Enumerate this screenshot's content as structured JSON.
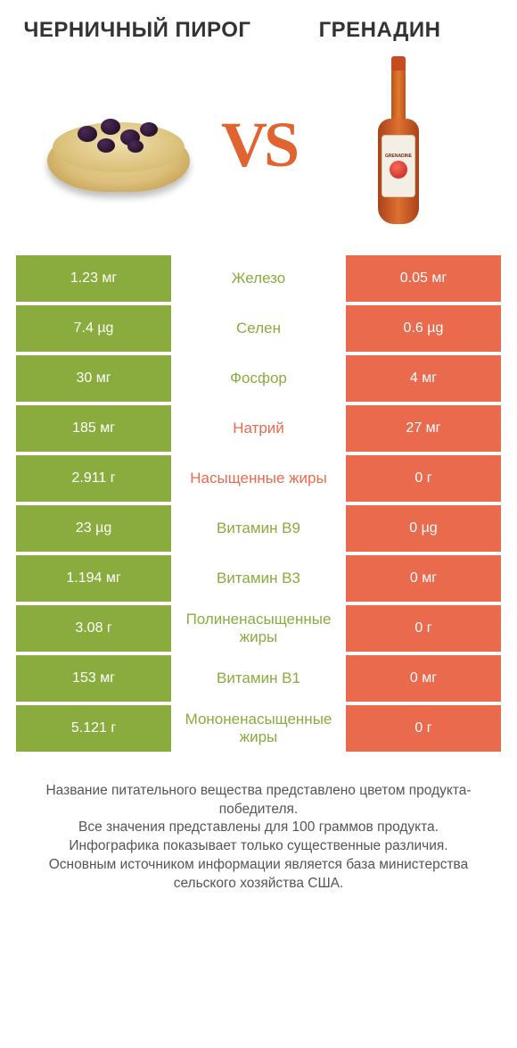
{
  "colors": {
    "left_bg": "#8aab3e",
    "right_bg": "#ea6a4e",
    "left_text": "#8aab3e",
    "right_text": "#ea6a4e",
    "title": "#333333",
    "vs": "#e0642f",
    "page_bg": "#ffffff",
    "footer_text": "#555555"
  },
  "header": {
    "left_title": "ЧЕРНИЧНЫЙ ПИРОГ",
    "right_title": "ГРЕНАДИН",
    "vs_label": "VS"
  },
  "rows": [
    {
      "left": "1.23 мг",
      "label": "Железо",
      "right": "0.05 мг",
      "winner": "left"
    },
    {
      "left": "7.4 µg",
      "label": "Селен",
      "right": "0.6 µg",
      "winner": "left"
    },
    {
      "left": "30 мг",
      "label": "Фосфор",
      "right": "4 мг",
      "winner": "left"
    },
    {
      "left": "185 мг",
      "label": "Натрий",
      "right": "27 мг",
      "winner": "right"
    },
    {
      "left": "2.911 г",
      "label": "Насыщенные жиры",
      "right": "0 г",
      "winner": "right"
    },
    {
      "left": "23 µg",
      "label": "Витамин B9",
      "right": "0 µg",
      "winner": "left"
    },
    {
      "left": "1.194 мг",
      "label": "Витамин B3",
      "right": "0 мг",
      "winner": "left"
    },
    {
      "left": "3.08 г",
      "label": "Полиненасыщенные жиры",
      "right": "0 г",
      "winner": "left"
    },
    {
      "left": "153 мг",
      "label": "Витамин B1",
      "right": "0 мг",
      "winner": "left"
    },
    {
      "left": "5.121 г",
      "label": "Мононенасыщенные жиры",
      "right": "0 г",
      "winner": "left"
    }
  ],
  "footer": {
    "line1": "Название питательного вещества представлено цветом продукта-победителя.",
    "line2": "Все значения представлены для 100 граммов продукта.",
    "line3": "Инфографика показывает только существенные различия.",
    "line4": "Основным источником информации является база министерства сельского хозяйства США."
  },
  "bottle_label": "GRENADINE"
}
